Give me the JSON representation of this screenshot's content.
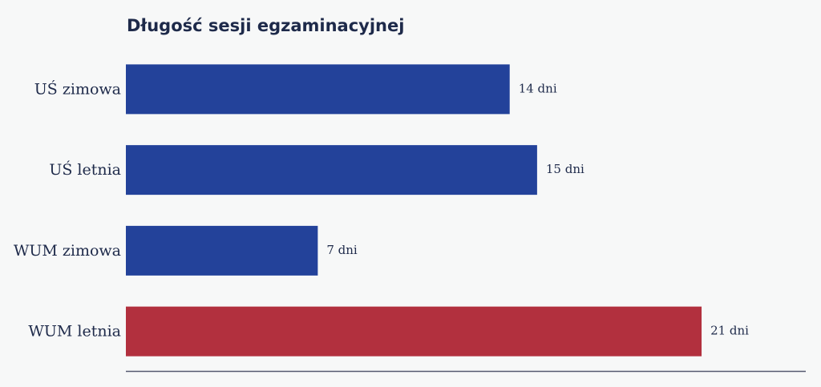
{
  "chart_data": {
    "type": "bar",
    "orientation": "horizontal",
    "title": "Długość sesji egzaminacyjnej",
    "categories": [
      "UŚ zimowa",
      "UŚ letnia",
      "WUM zimowa",
      "WUM letnia"
    ],
    "values": [
      14,
      15,
      7,
      21
    ],
    "value_labels": [
      "14 dni",
      "15 dni",
      "7 dni",
      "21 dni"
    ],
    "colors": [
      "#23429a",
      "#23429a",
      "#23429a",
      "#b2303e"
    ],
    "xlim": [
      0,
      24.8
    ]
  }
}
